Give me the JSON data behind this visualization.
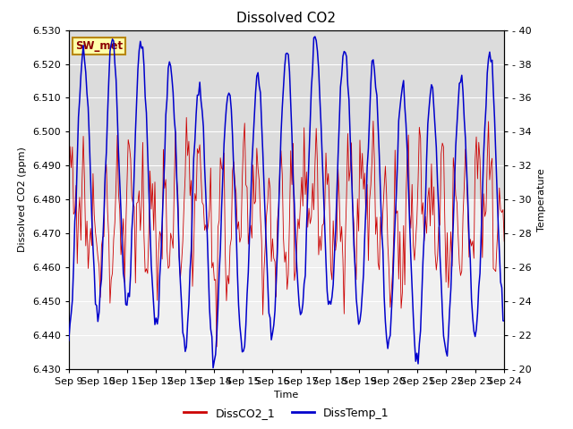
{
  "title": "Dissolved CO2",
  "xlabel": "Time",
  "ylabel_left": "Dissolved CO2 (ppm)",
  "ylabel_right": "Temperature",
  "ylim_left": [
    6.43,
    6.53
  ],
  "ylim_right": [
    20,
    40
  ],
  "yticks_left": [
    6.43,
    6.44,
    6.45,
    6.46,
    6.47,
    6.48,
    6.49,
    6.5,
    6.51,
    6.52,
    6.53
  ],
  "yticks_right": [
    20,
    22,
    24,
    26,
    28,
    30,
    32,
    34,
    36,
    38,
    40
  ],
  "xtick_labels": [
    "Sep 9",
    "Sep 10",
    "Sep 11",
    "Sep 12",
    "Sep 13",
    "Sep 14",
    "Sep 15",
    "Sep 16",
    "Sep 17",
    "Sep 18",
    "Sep 19",
    "Sep 20",
    "Sep 21",
    "Sep 22",
    "Sep 23",
    "Sep 24"
  ],
  "color_co2": "#cc0000",
  "color_temp": "#0000cc",
  "legend_co2": "DissCO2_1",
  "legend_temp": "DissTemp_1",
  "label_box_text": "SW_met",
  "background_upper_color": "#dcdcdc",
  "background_lower_color": "#f0f0f0",
  "grid_color": "#ffffff",
  "title_fontsize": 11,
  "label_fontsize": 8,
  "tick_fontsize": 8,
  "figwidth": 6.4,
  "figheight": 4.8,
  "dpi": 100
}
